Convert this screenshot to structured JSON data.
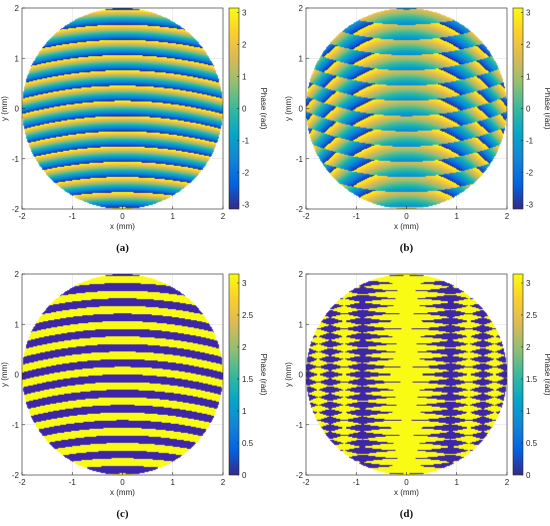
{
  "chart_data": [
    {
      "type": "heatmap",
      "panel_label": "(a)",
      "pattern": "continuous-phase-horizontal-fringes",
      "xlabel": "x (mm)",
      "ylabel": "y (mm)",
      "xlim": [
        -2,
        2
      ],
      "ylim": [
        -2,
        2
      ],
      "xticks": [
        "-2",
        "-1",
        "0",
        "1",
        "2"
      ],
      "yticks": [
        "-2",
        "-1",
        "0",
        "1",
        "2"
      ],
      "aperture_radius_mm": 2,
      "fringes_per_mm": 3.3,
      "colorbar": {
        "label": "Phase (rad)",
        "range": [
          -3.14,
          3.14
        ],
        "ticks": [
          "-3",
          "-2",
          "-1",
          "0",
          "1",
          "2",
          "3"
        ],
        "tick_values": [
          -3,
          -2,
          -1,
          0,
          1,
          2,
          3
        ],
        "colormap": "parula"
      },
      "grid": true
    },
    {
      "type": "heatmap",
      "panel_label": "(b)",
      "pattern": "continuous-phase-crossed-fringes",
      "xlabel": "x (mm)",
      "ylabel": "y (mm)",
      "xlim": [
        -2,
        2
      ],
      "ylim": [
        -2,
        2
      ],
      "xticks": [
        "-2",
        "-1",
        "0",
        "1",
        "2"
      ],
      "yticks": [
        "-2",
        "-1",
        "0",
        "1",
        "2"
      ],
      "aperture_radius_mm": 2,
      "fringes_per_mm": 3.3,
      "colorbar": {
        "label": "Phase (rad)",
        "range": [
          -3.14,
          3.14
        ],
        "ticks": [
          "-3",
          "-2",
          "-1",
          "0",
          "1",
          "2",
          "3"
        ],
        "tick_values": [
          -3,
          -2,
          -1,
          0,
          1,
          2,
          3
        ],
        "colormap": "parula"
      },
      "grid": true
    },
    {
      "type": "heatmap",
      "panel_label": "(c)",
      "pattern": "binary-phase-horizontal-fringes",
      "xlabel": "x (mm)",
      "ylabel": "y (mm)",
      "xlim": [
        -2,
        2
      ],
      "ylim": [
        -2,
        2
      ],
      "xticks": [
        "-2",
        "-1",
        "0",
        "1",
        "2"
      ],
      "yticks": [
        "-2",
        "-1",
        "0",
        "1",
        "2"
      ],
      "aperture_radius_mm": 2,
      "fringes_per_mm": 3.3,
      "binary_levels": [
        0,
        3.14
      ],
      "colorbar": {
        "label": "Phase (rad)",
        "range": [
          0,
          3.14
        ],
        "ticks": [
          "0",
          "0.5",
          "1",
          "1.5",
          "2",
          "2.5",
          "3"
        ],
        "tick_values": [
          0,
          0.5,
          1,
          1.5,
          2,
          2.5,
          3
        ],
        "colormap": "parula"
      },
      "grid": true
    },
    {
      "type": "heatmap",
      "panel_label": "(d)",
      "pattern": "binary-phase-crossed-fringes",
      "xlabel": "x (mm)",
      "ylabel": "y (mm)",
      "xlim": [
        -2,
        2
      ],
      "ylim": [
        -2,
        2
      ],
      "xticks": [
        "-2",
        "-1",
        "0",
        "1",
        "2"
      ],
      "yticks": [
        "-2",
        "-1",
        "0",
        "1",
        "2"
      ],
      "aperture_radius_mm": 2,
      "fringes_per_mm": 3.3,
      "binary_levels": [
        0,
        3.14
      ],
      "colorbar": {
        "label": "Phase (rad)",
        "range": [
          0,
          3.14
        ],
        "ticks": [
          "0",
          "0.5",
          "1",
          "1.5",
          "2",
          "2.5",
          "3"
        ],
        "tick_values": [
          0,
          0.5,
          1,
          1.5,
          2,
          2.5,
          3
        ],
        "colormap": "parula"
      },
      "grid": true
    }
  ],
  "colors": {
    "parula_stops": [
      "#352a87",
      "#0363e1",
      "#1485d4",
      "#06a7c6",
      "#38b99e",
      "#92bf73",
      "#d9ba56",
      "#fcce2e",
      "#f9fb0e"
    ],
    "binary_low": "#3e26a8",
    "binary_high": "#f9fb15",
    "axis": "#262626",
    "grid": "#dcdcdc"
  }
}
